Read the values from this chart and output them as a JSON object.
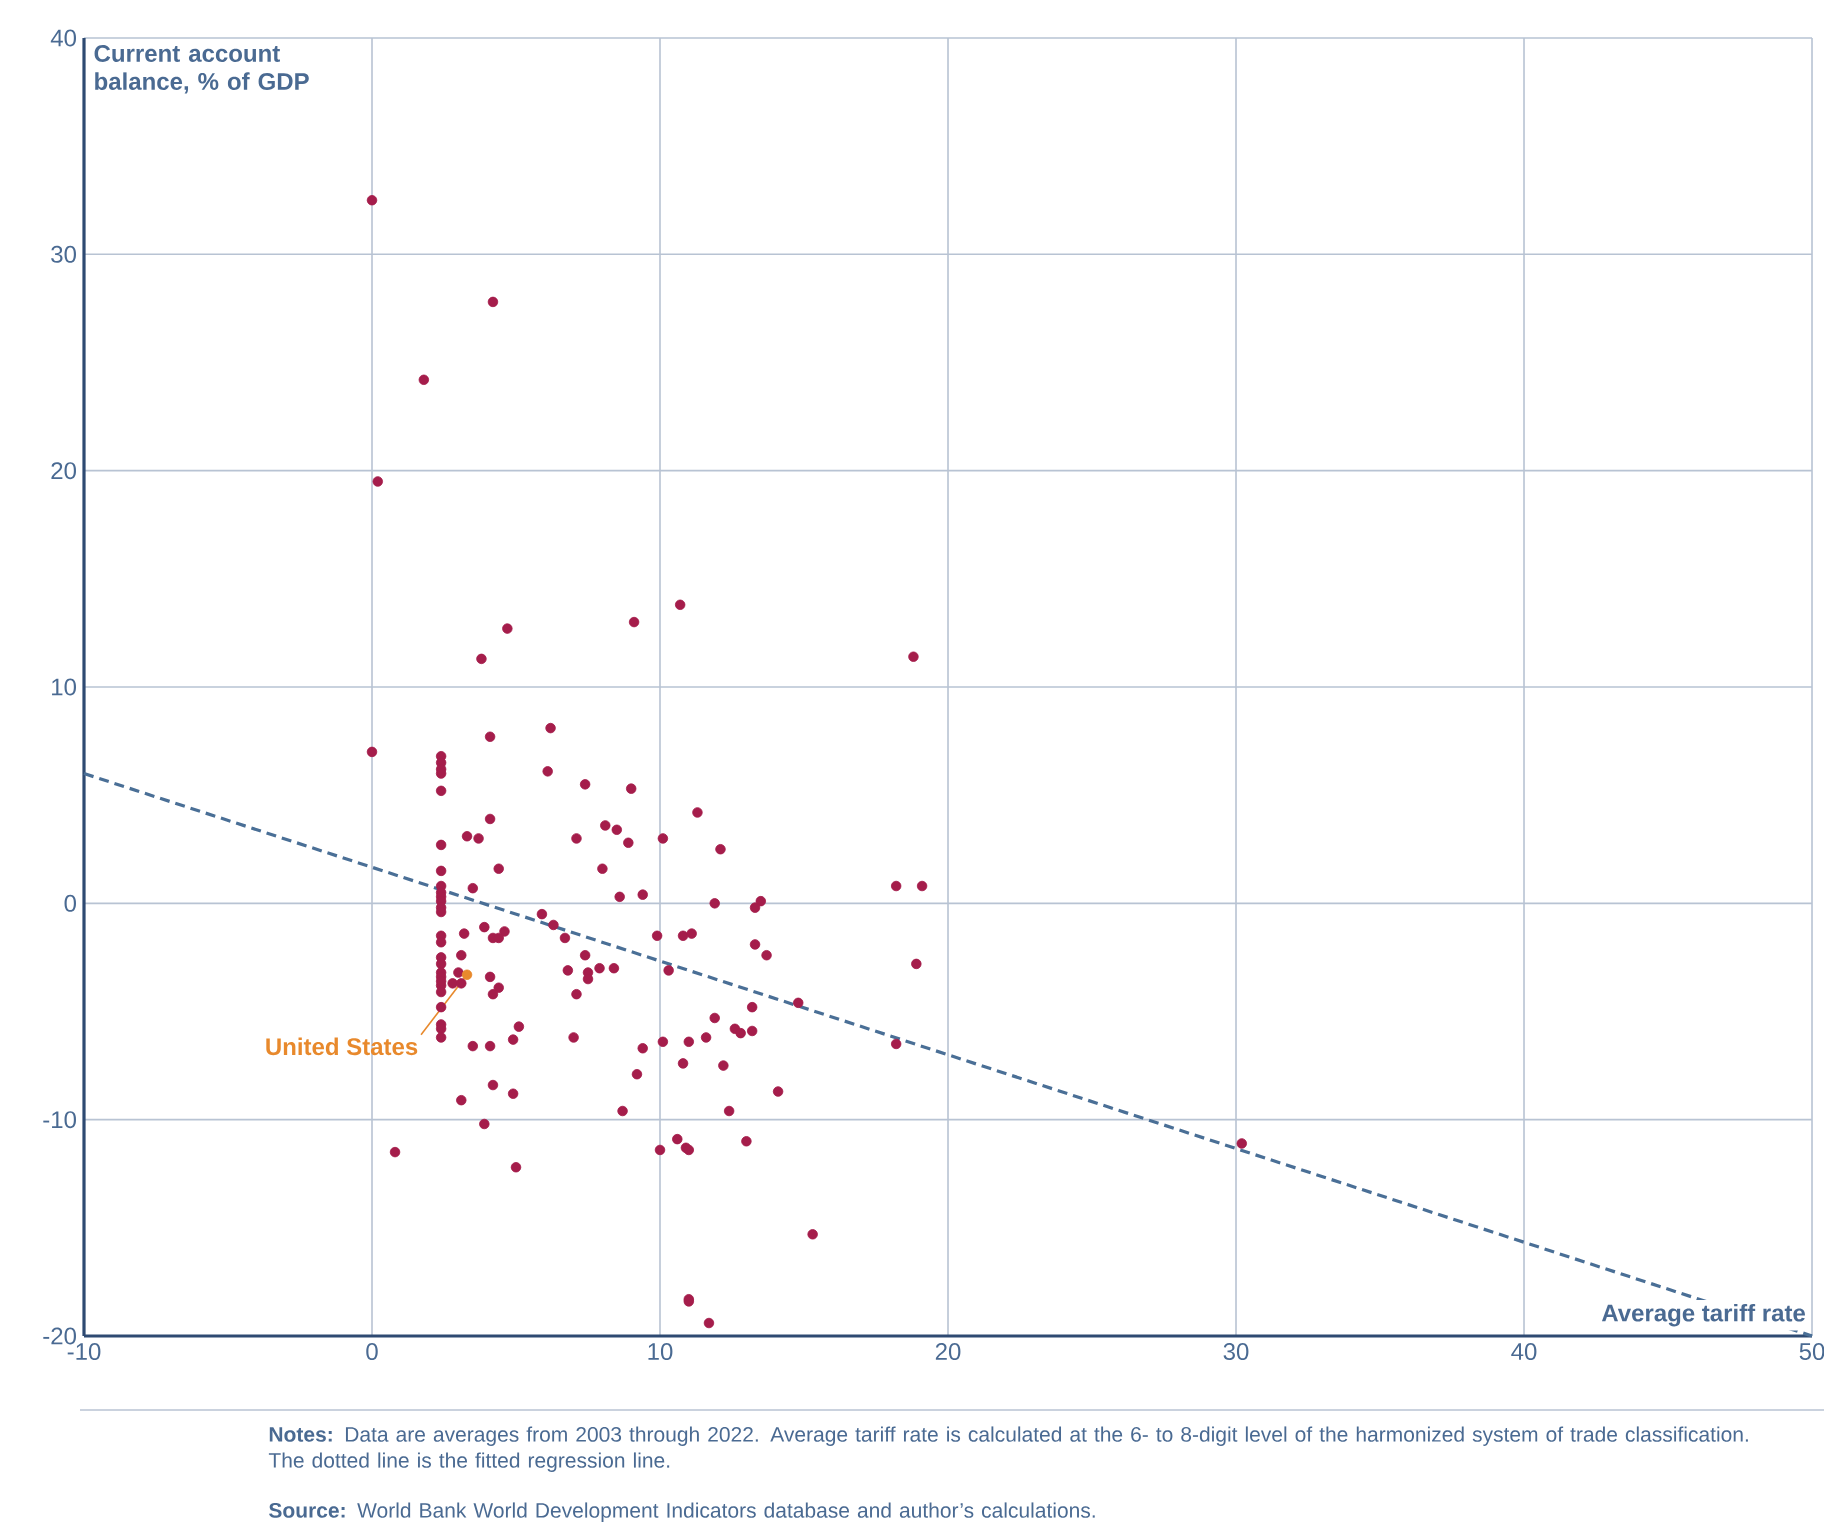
{
  "chart_data": {
    "type": "scatter",
    "xlabel": "Average tariff rate",
    "ylabel": "Current account balance, % of GDP",
    "xlim": [
      -10,
      50
    ],
    "ylim": [
      -20,
      40
    ],
    "xticks": [
      -10,
      0,
      10,
      20,
      30,
      40,
      50
    ],
    "yticks": [
      -20,
      -10,
      0,
      10,
      20,
      30,
      40
    ],
    "grid": true,
    "annotations": [
      "**Notes:** Data are averages from 2003 through 2022. Average tariff rate is calculated at the 6- to 8-digit level of the harmonized system of trade classification. The dotted line is the fitted regression line.",
      "**Source:** World Bank World Development Indicators database and author’s calculations."
    ],
    "series": [
      {
        "color": "#a51d4b",
        "marker": "circle",
        "x": [
          0,
          4.2,
          1.8,
          0.2,
          10.7,
          9.1,
          4.7,
          3.8,
          18.8,
          0,
          6.2,
          4.1,
          2.4,
          2.4,
          2.4,
          2.4,
          2.4,
          6.1,
          7.4,
          9.0,
          4.1,
          3.3,
          3.7,
          8.1,
          8.5,
          7.1,
          8.9,
          10.1,
          12.1,
          11.3,
          2.4,
          2.4,
          4.4,
          8.0,
          2.4,
          2.4,
          2.4,
          2.4,
          2.4,
          2.4,
          3.5,
          9.4,
          8.6,
          18.2,
          19.1,
          13.5,
          13.3,
          11.9,
          5.9,
          6.3,
          4.6,
          3.9,
          4.2,
          4.4,
          3.2,
          6.7,
          9.9,
          10.8,
          11.1,
          13.3,
          13.7,
          7.4,
          6.8,
          7.5,
          7.9,
          8.4,
          10.3,
          18.9,
          2.4,
          2.4,
          2.4,
          2.4,
          2.4,
          2.4,
          2.4,
          2.4,
          2.4,
          2.4,
          2.4,
          2.4,
          2.4,
          3.1,
          3.0,
          2.8,
          3.1,
          4.1,
          4.4,
          4.2,
          7.1,
          7.5,
          14.8,
          13.2,
          11.9,
          5.1,
          12.6,
          12.8,
          13.2,
          11.6,
          11.0,
          10.1,
          7.0,
          4.9,
          3.5,
          4.1,
          18.2,
          9.4,
          10.8,
          12.2,
          9.2,
          4.2,
          4.9,
          14.1,
          3.1,
          8.7,
          12.4,
          3.9,
          10.6,
          10.9,
          11.0,
          10.0,
          13.0,
          30.2,
          0.8,
          5.0,
          15.3,
          11.0,
          11.0,
          11.7
        ],
        "values": [
          32.5,
          27.8,
          24.2,
          19.5,
          13.8,
          13.0,
          12.7,
          11.3,
          11.4,
          7.0,
          8.1,
          7.7,
          6.8,
          6.5,
          6.2,
          6.0,
          5.2,
          6.1,
          5.5,
          5.3,
          3.9,
          3.1,
          3.0,
          3.6,
          3.4,
          3.0,
          2.8,
          3.0,
          2.5,
          4.2,
          2.7,
          1.5,
          1.6,
          1.6,
          0.8,
          0.5,
          0.3,
          0.1,
          -0.2,
          -0.4,
          0.7,
          0.4,
          0.3,
          0.8,
          0.8,
          0.1,
          -0.2,
          0,
          -0.5,
          -1.0,
          -1.3,
          -1.1,
          -1.6,
          -1.6,
          -1.4,
          -1.6,
          -1.5,
          -1.5,
          -1.4,
          -1.9,
          -2.4,
          -2.4,
          -3.1,
          -3.2,
          -3.0,
          -3.0,
          -3.1,
          -2.8,
          -1.5,
          -1.8,
          -2.5,
          -2.8,
          -3.2,
          -3.4,
          -3.8,
          -4.1,
          -4.8,
          -5.6,
          -5.8,
          -6.2,
          -3.6,
          -2.4,
          -3.2,
          -3.7,
          -3.7,
          -3.4,
          -3.9,
          -4.2,
          -4.2,
          -3.5,
          -4.6,
          -4.8,
          -5.3,
          -5.7,
          -5.8,
          -6.0,
          -5.9,
          -6.2,
          -6.4,
          -6.4,
          -6.2,
          -6.3,
          -6.6,
          -6.6,
          -6.5,
          -6.7,
          -7.4,
          -7.5,
          -7.9,
          -8.4,
          -8.8,
          -8.7,
          -9.1,
          -9.6,
          -9.6,
          -10.2,
          -10.9,
          -11.3,
          -11.4,
          -11.4,
          -11.0,
          -11.1,
          -11.5,
          -12.2,
          -15.3,
          -18.3,
          -18.4,
          -19.4
        ]
      },
      {
        "name": "United States",
        "color": "#e8892c",
        "marker": "circle",
        "x": [
          3.3
        ],
        "values": [
          -3.3
        ]
      },
      {
        "type": "line",
        "line_style": "dashed",
        "marker": "none",
        "color": "#4a6f96",
        "x": [
          -10,
          50
        ],
        "values": [
          6.0,
          -20.0
        ]
      }
    ]
  }
}
